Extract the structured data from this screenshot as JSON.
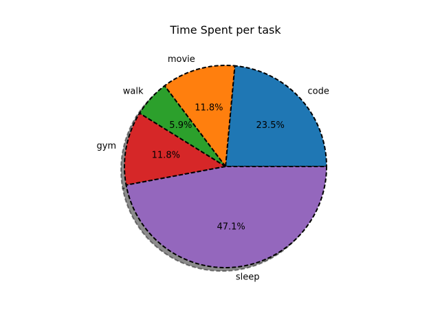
{
  "chart_data": {
    "type": "pie",
    "title": "Time Spent per task",
    "autopct_decimals": 1,
    "start_angle_deg": 0,
    "direction": "counterclockwise",
    "edge_style": "dashed",
    "edge_color": "#000000",
    "shadow": true,
    "slices": [
      {
        "label": "code",
        "value": 4,
        "percent": "23.5%",
        "color": "#1f77b4"
      },
      {
        "label": "movie",
        "value": 2,
        "percent": "11.8%",
        "color": "#ff7f0e"
      },
      {
        "label": "walk",
        "value": 1,
        "percent": "5.9%",
        "color": "#2ca02c"
      },
      {
        "label": "gym",
        "value": 2,
        "percent": "11.8%",
        "color": "#d62728"
      },
      {
        "label": "sleep",
        "value": 8,
        "percent": "47.1%",
        "color": "#9467bd"
      }
    ]
  }
}
